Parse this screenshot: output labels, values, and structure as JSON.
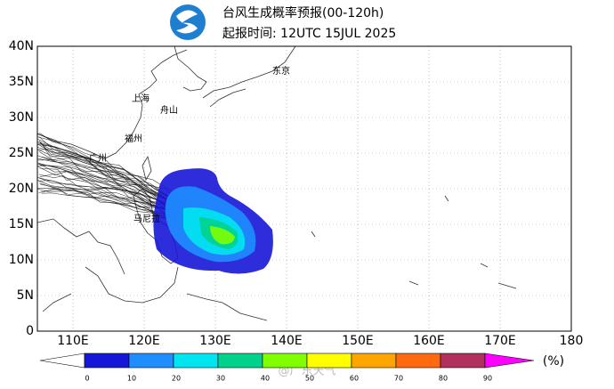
{
  "header": {
    "title": "台风生成概率预报(00-120h)",
    "subtitle": "起报时间: 12UTC 15JUL 2025"
  },
  "map": {
    "lat_labels": [
      "40N",
      "35N",
      "30N",
      "25N",
      "20N",
      "15N",
      "10N",
      "5N",
      "0"
    ],
    "lon_labels": [
      "110E",
      "120E",
      "130E",
      "140E",
      "150E",
      "160E",
      "170E",
      "180"
    ],
    "places": [
      "东京",
      "上海",
      "舟山",
      "福州",
      "广州",
      "马尼拉"
    ]
  },
  "colorbar": {
    "labels": [
      0,
      10,
      20,
      30,
      40,
      50,
      60,
      70,
      80,
      90
    ],
    "under_color": "#ffffff",
    "colors": [
      "#1616d8",
      "#1f8fff",
      "#00e6f0",
      "#00d28c",
      "#80ff00",
      "#ffff00",
      "#ffa500",
      "#ff6a10",
      "#b03060"
    ],
    "over_color": "#ff00ff",
    "unit": "(%)"
  },
  "watermark": "@广东天气"
}
